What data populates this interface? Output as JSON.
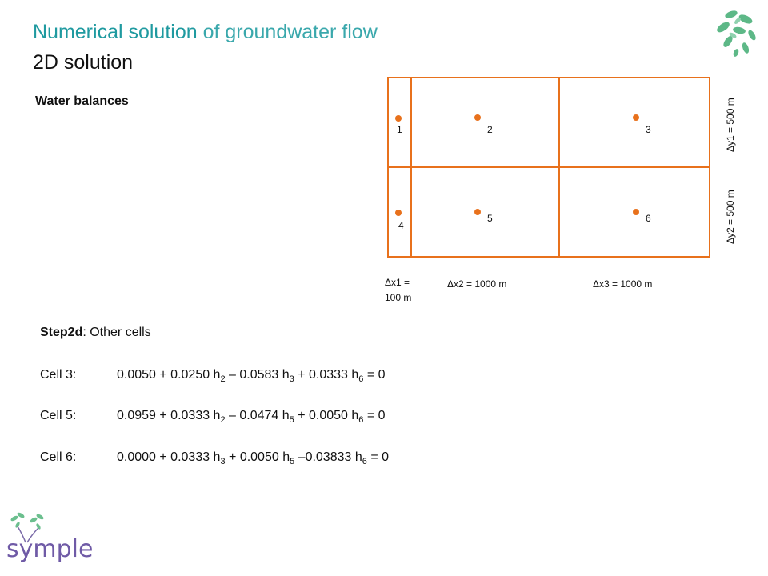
{
  "header": {
    "title_accent": "Numerical solution",
    "title_rest": " of groundwater flow",
    "subtitle": "2D solution"
  },
  "section_heading": "Water balances",
  "grid": {
    "cell_labels": [
      "1",
      "2",
      "3",
      "4",
      "5",
      "6"
    ],
    "dx1_line1": "Δx1 =",
    "dx1_line2": "100 m",
    "dx2": "Δx2 = 1000 m",
    "dx3": "Δx3 = 1000 m",
    "dy1": "Δy1 = 500 m",
    "dy2": "Δy2 = 500 m"
  },
  "step": {
    "label": "Step2d",
    "text": ": Other cells"
  },
  "equations": [
    {
      "cell": "Cell 3:",
      "terms": [
        {
          "t": "0.0050 + 0.0250 h"
        },
        {
          "s": "2"
        },
        {
          "t": " – 0.0583 h"
        },
        {
          "s": "3"
        },
        {
          "t": " + 0.0333 h"
        },
        {
          "s": "6"
        },
        {
          "t": " = 0"
        }
      ]
    },
    {
      "cell": "Cell 5:",
      "terms": [
        {
          "t": "0.0959 + 0.0333 h"
        },
        {
          "s": "2"
        },
        {
          "t": " – 0.0474 h"
        },
        {
          "s": "5"
        },
        {
          "t": " + 0.0050 h"
        },
        {
          "s": "6"
        },
        {
          "t": " = 0"
        }
      ]
    },
    {
      "cell": "Cell 6:",
      "terms": [
        {
          "t": "0.0000 + 0.0333 h"
        },
        {
          "s": "3"
        },
        {
          "t": " + 0.0050 h"
        },
        {
          "s": "5"
        },
        {
          "t": " –0.03833 h"
        },
        {
          "s": "6"
        },
        {
          "t": " = 0"
        }
      ]
    }
  ],
  "logo_text": "symple",
  "colors": {
    "accent": "#1f9aa0",
    "grid": "#e8711c",
    "leaf": "#4fae7a"
  }
}
